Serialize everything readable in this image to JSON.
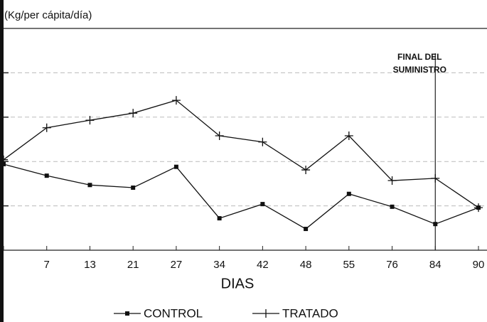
{
  "chart_data": {
    "type": "line",
    "ylabel": "(Kg/per cápita/día)",
    "xlabel": "DIAS",
    "categories": [
      null,
      "7",
      "13",
      "21",
      "27",
      "34",
      "42",
      "48",
      "55",
      "76",
      "84",
      "90"
    ],
    "series": [
      {
        "name": "CONTROL",
        "color": "#111111",
        "marker": "square",
        "values": [
          1.94,
          1.68,
          1.47,
          1.41,
          1.88,
          0.72,
          1.04,
          0.48,
          1.27,
          0.98,
          0.59,
          0.96
        ]
      },
      {
        "name": "TRATADO",
        "color": "#111111",
        "marker": "plus",
        "values": [
          2.04,
          2.76,
          2.93,
          3.09,
          3.38,
          2.58,
          2.44,
          1.81,
          2.58,
          1.57,
          1.62,
          0.96
        ]
      }
    ],
    "ylim": [
      0,
      5
    ],
    "yticks": [
      1,
      2,
      3,
      4
    ],
    "grid": true,
    "annotations": [
      {
        "x": "84",
        "lines": [
          "FINAL DEL",
          "SUMINISTRO"
        ]
      }
    ]
  }
}
